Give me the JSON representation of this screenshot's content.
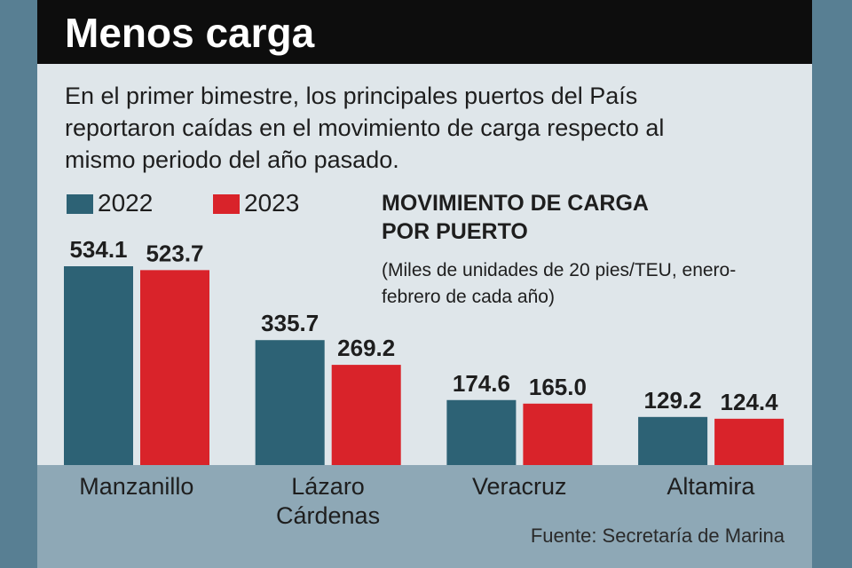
{
  "title": "Menos carga",
  "subtitle": "En el primer bimestre, los principales puertos del País reportaron caídas en el movimiento de carga respecto al mismo periodo del año pasado.",
  "source": "Fuente: Secretaría de Marina",
  "chart_data": {
    "type": "bar",
    "title": "MOVIMIENTO DE CARGA POR PUERTO",
    "subtitle": "(Miles de unidades de 20 pies/TEU, enero-febrero de cada año)",
    "categories": [
      "Manzanillo",
      "Lázaro Cárdenas",
      "Veracruz",
      "Altamira"
    ],
    "series": [
      {
        "name": "2022",
        "color": "#2d6275",
        "values": [
          534.1,
          335.7,
          174.6,
          129.2
        ],
        "value_labels": [
          "534.1",
          "335.7",
          "174.6",
          "129.2"
        ]
      },
      {
        "name": "2023",
        "color": "#d9232a",
        "values": [
          523.7,
          269.2,
          165.0,
          124.4
        ],
        "value_labels": [
          "523.7",
          "269.2",
          "165.0",
          "124.4"
        ]
      }
    ]
  }
}
